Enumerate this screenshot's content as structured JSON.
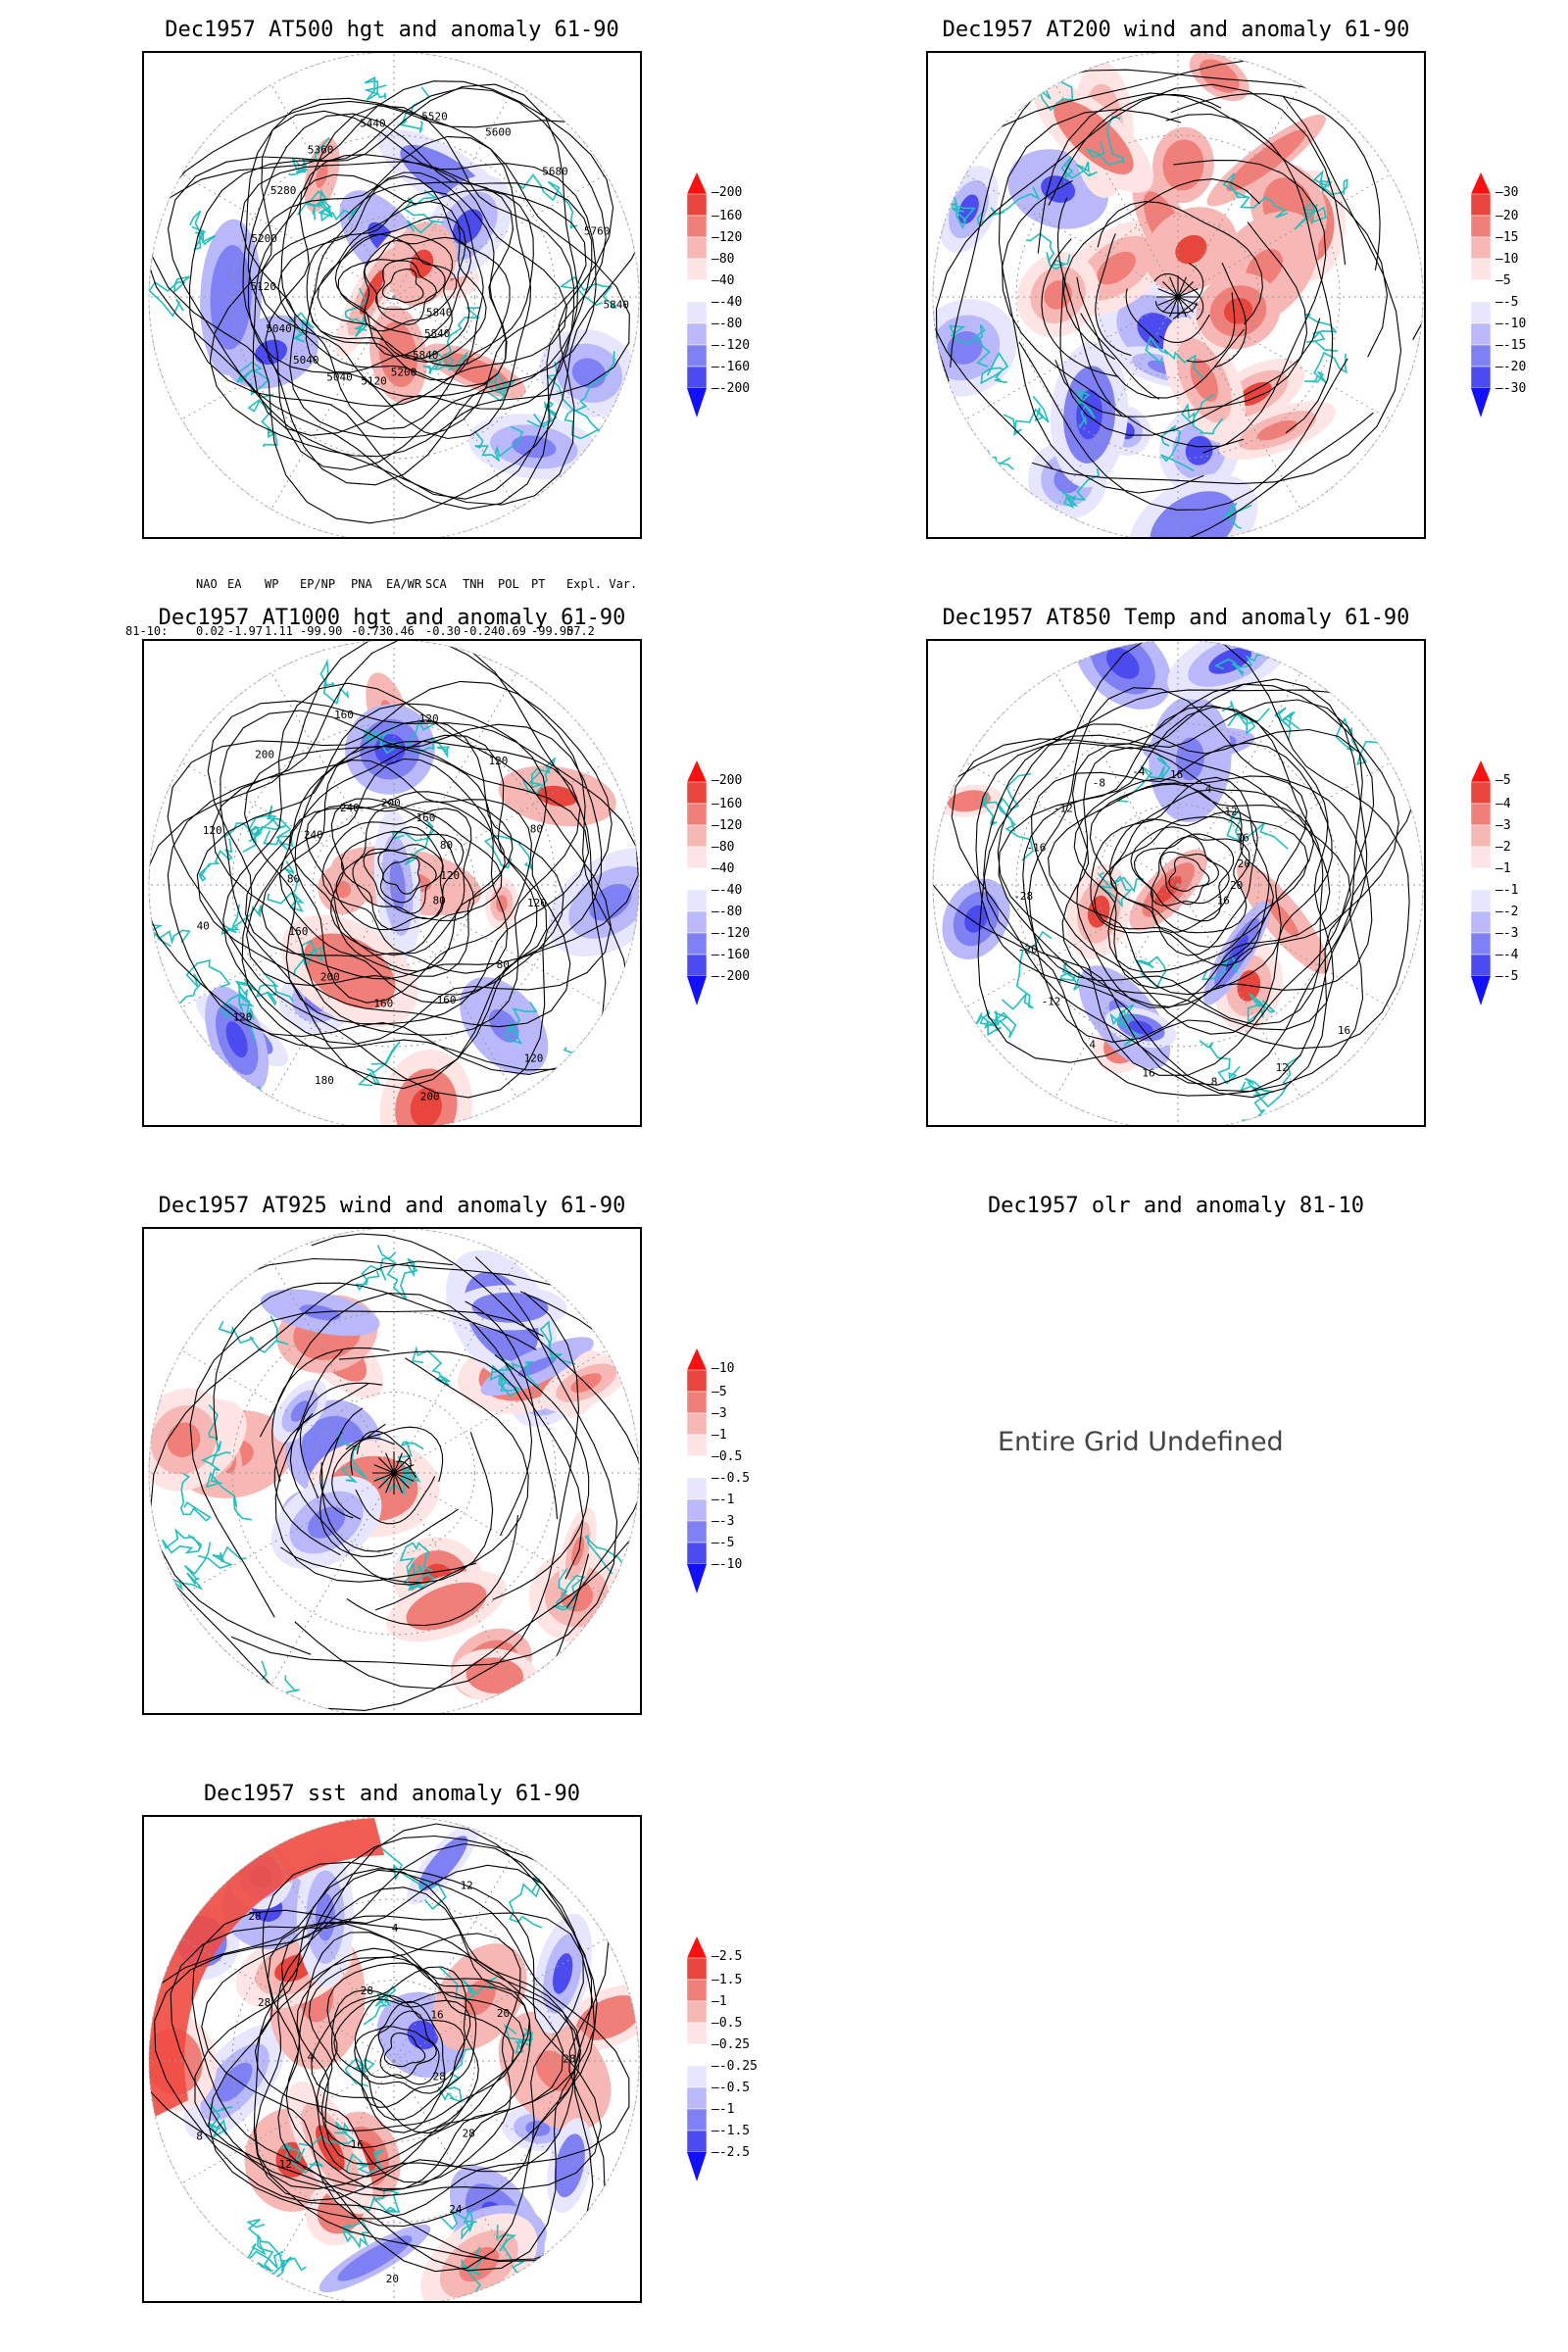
{
  "panels": [
    {
      "id": "p1",
      "title": "Dec1957 AT500 hgt and anomaly 61-90",
      "kind": "height",
      "contour_labels": [
        "5840",
        "5840",
        "5840",
        "5200",
        "5120",
        "5040",
        "5040",
        "5040",
        "5120",
        "5200",
        "5280",
        "5360",
        "5440",
        "5520",
        "5600",
        "5680",
        "5760",
        "5840"
      ],
      "colorbar": {
        "above": "200",
        "levels": [
          "160",
          "120",
          "80",
          "40",
          "-40",
          "-80",
          "-120",
          "-160"
        ],
        "below": "-200"
      }
    },
    {
      "id": "p2",
      "title": "Dec1957 AT200 wind and anomaly 61-90",
      "kind": "wind",
      "colorbar": {
        "above": "30",
        "levels": [
          "20",
          "15",
          "10",
          "5",
          "-5",
          "-10",
          "-15",
          "-20"
        ],
        "below": "-30"
      }
    },
    {
      "id": "p3",
      "title": "Dec1957 AT1000 hgt and anomaly 61-90",
      "kind": "height",
      "contour_labels": [
        "80",
        "80",
        "120",
        "160",
        "200",
        "160",
        "180",
        "200",
        "120",
        "160",
        "40",
        "80",
        "120",
        "240",
        "200",
        "240",
        "160",
        "200",
        "120",
        "160",
        "120",
        "80",
        "80",
        "120",
        "120"
      ],
      "colorbar": {
        "above": "200",
        "levels": [
          "160",
          "120",
          "80",
          "40",
          "-40",
          "-80",
          "-120",
          "-160"
        ],
        "below": "-200"
      }
    },
    {
      "id": "p4",
      "title": "Dec1957 AT850 Temp and anomaly 61-90",
      "kind": "temp",
      "contour_labels": [
        "16",
        "16",
        "12",
        "8",
        "16",
        "4",
        "-12",
        "-20",
        "-28",
        "-16",
        "-12",
        "-8",
        "-4",
        "16",
        "4",
        "12",
        "16",
        "20",
        "20"
      ],
      "colorbar": {
        "above": "5",
        "levels": [
          "4",
          "3",
          "2",
          "1",
          "-1",
          "-2",
          "-3",
          "-4"
        ],
        "below": "-5"
      }
    },
    {
      "id": "p5",
      "title": "Dec1957 AT925 wind and anomaly 61-90",
      "kind": "wind",
      "colorbar": {
        "above": "10",
        "levels": [
          "5",
          "3",
          "1",
          "0.5",
          "-0.5",
          "-1",
          "-3",
          "-5"
        ],
        "below": "-10"
      }
    },
    {
      "id": "p6",
      "title": "Dec1957 olr and anomaly 81-10",
      "kind": "empty",
      "message": "Entire Grid Undefined"
    },
    {
      "id": "p7",
      "title": "Dec1957 sst and anomaly 61-90",
      "kind": "sst",
      "contour_labels": [
        "28",
        "28",
        "24",
        "20",
        "16",
        "12",
        "8",
        "4",
        "28",
        "28",
        "28",
        "4",
        "12",
        "16",
        "20",
        "28"
      ],
      "colorbar": {
        "above": "2.5",
        "levels": [
          "1.5",
          "1",
          "0.5",
          "0.25",
          "-0.25",
          "-0.5",
          "-1",
          "-1.5"
        ],
        "below": "-2.5"
      }
    }
  ],
  "teleconnection": {
    "headers": [
      "NAO",
      "EA",
      "WP",
      "EP/NP",
      "PNA",
      "EA/WR",
      "SCA",
      "TNH",
      "POL",
      "PT",
      "Expl. Var."
    ],
    "row_label": "81-10:",
    "values": [
      "0.02",
      "-1.97",
      "1.11",
      "-99.90",
      "-0.73",
      "0.46",
      "-0.30",
      "-0.24",
      "0.69",
      "-99.90",
      "57.2"
    ]
  },
  "colors": {
    "positive": "#e8453c",
    "negative": "#3b3bf0",
    "coast": "#20c0c0",
    "contour": "#000000"
  }
}
